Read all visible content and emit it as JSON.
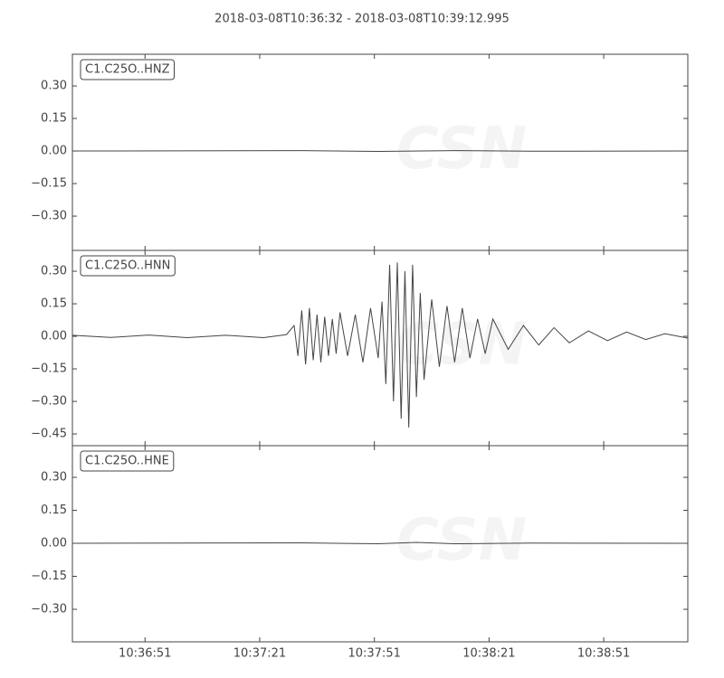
{
  "title": "2018-03-08T10:36:32  -  2018-03-08T10:39:12.995",
  "watermark": "CSN",
  "chart_data": [
    {
      "type": "line",
      "series": [
        {
          "name": "C1.C25O..HNZ",
          "color": "#444444",
          "x": [
            0,
            60,
            80,
            100,
            120,
            161
          ],
          "values": [
            0,
            0.002,
            -0.002,
            0.002,
            -0.001,
            0
          ]
        }
      ],
      "xlim": [
        0,
        160.995
      ],
      "ylim": [
        -0.458,
        0.446
      ],
      "yticks": [
        {
          "value": 0.3,
          "label": "0.30"
        },
        {
          "value": 0.15,
          "label": "0.15"
        },
        {
          "value": 0,
          "label": "0.00"
        },
        {
          "value": -0.15,
          "label": "−0.15"
        },
        {
          "value": -0.3,
          "label": "−0.30"
        }
      ]
    },
    {
      "type": "line",
      "series": [
        {
          "name": "C1.C25O..HNN",
          "color": "#444444",
          "x": [
            0,
            10,
            20,
            30,
            40,
            50,
            56,
            58,
            59,
            60,
            61,
            62,
            63,
            64,
            65,
            66,
            67,
            68,
            69,
            70,
            72,
            74,
            76,
            78,
            80,
            81,
            82,
            83,
            84,
            85,
            86,
            87,
            88,
            89,
            90,
            91,
            92,
            94,
            96,
            98,
            100,
            102,
            104,
            106,
            108,
            110,
            114,
            118,
            122,
            126,
            130,
            135,
            140,
            145,
            150,
            155,
            161
          ],
          "values": [
            0.005,
            -0.005,
            0.006,
            -0.006,
            0.005,
            -0.006,
            0.008,
            0.05,
            -0.09,
            0.12,
            -0.13,
            0.13,
            -0.11,
            0.1,
            -0.12,
            0.09,
            -0.09,
            0.08,
            -0.08,
            0.11,
            -0.09,
            0.1,
            -0.12,
            0.13,
            -0.1,
            0.16,
            -0.22,
            0.33,
            -0.3,
            0.34,
            -0.38,
            0.3,
            -0.42,
            0.33,
            -0.28,
            0.2,
            -0.2,
            0.17,
            -0.14,
            0.14,
            -0.12,
            0.13,
            -0.1,
            0.08,
            -0.08,
            0.08,
            -0.06,
            0.05,
            -0.04,
            0.04,
            -0.03,
            0.025,
            -0.02,
            0.02,
            -0.015,
            0.012,
            -0.008
          ]
        }
      ],
      "xlim": [
        0,
        160.995
      ],
      "ylim": [
        -0.504,
        0.396
      ],
      "yticks": [
        {
          "value": 0.3,
          "label": "0.30"
        },
        {
          "value": 0.15,
          "label": "0.15"
        },
        {
          "value": 0,
          "label": "0.00"
        },
        {
          "value": -0.15,
          "label": "−0.15"
        },
        {
          "value": -0.3,
          "label": "−0.30"
        },
        {
          "value": -0.45,
          "label": "−0.45"
        }
      ]
    },
    {
      "type": "line",
      "series": [
        {
          "name": "C1.C25O..HNE",
          "color": "#444444",
          "x": [
            0,
            60,
            80,
            90,
            100,
            120,
            161
          ],
          "values": [
            0,
            0.002,
            -0.002,
            0.004,
            -0.002,
            0.001,
            0
          ]
        }
      ],
      "xlim": [
        0,
        160.995
      ],
      "ylim": [
        -0.448,
        0.444
      ],
      "xticks": [
        {
          "value": 19,
          "label": "10:36:51"
        },
        {
          "value": 49,
          "label": "10:37:21"
        },
        {
          "value": 79,
          "label": "10:37:51"
        },
        {
          "value": 109,
          "label": "10:38:21"
        },
        {
          "value": 139,
          "label": "10:38:51"
        }
      ],
      "yticks": [
        {
          "value": 0.3,
          "label": "0.30"
        },
        {
          "value": 0.15,
          "label": "0.15"
        },
        {
          "value": 0,
          "label": "0.00"
        },
        {
          "value": -0.15,
          "label": "−0.15"
        },
        {
          "value": -0.3,
          "label": "−0.30"
        }
      ]
    }
  ]
}
